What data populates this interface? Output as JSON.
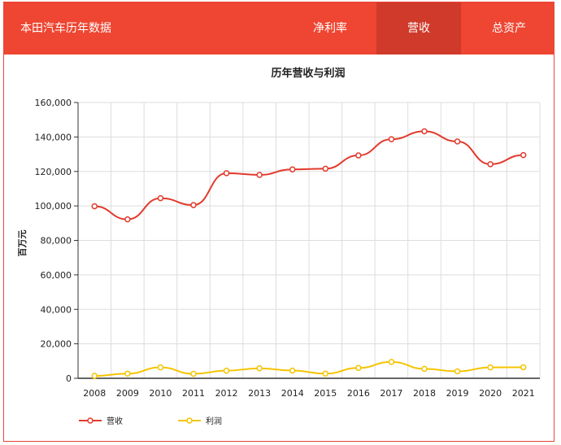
{
  "header": {
    "title": "本田汽车历年数据",
    "tabs": [
      {
        "label": "净利率",
        "active": false
      },
      {
        "label": "营收",
        "active": true
      },
      {
        "label": "总资产",
        "active": false
      }
    ]
  },
  "colors": {
    "accent": "#ee4632",
    "active_tab": "#cf3a2b",
    "series_revenue": "#e23a2c",
    "series_profit": "#f5c400"
  },
  "chart_data": {
    "type": "line",
    "title": "历年营收与利润",
    "xlabel": "",
    "ylabel": "百万元",
    "ylim": [
      0,
      160000
    ],
    "yticks": [
      "0",
      "20,000",
      "40,000",
      "60,000",
      "80,000",
      "100,000",
      "120,000",
      "140,000",
      "160,000"
    ],
    "x": [
      "2008",
      "2009",
      "2010",
      "2011",
      "2012",
      "2013",
      "2014",
      "2015",
      "2016",
      "2017",
      "2018",
      "2019",
      "2020",
      "2021"
    ],
    "grid": true,
    "legend_position": "bottom-left",
    "series": [
      {
        "name": "营收",
        "values": [
          99800,
          92200,
          104500,
          100500,
          119000,
          118000,
          121200,
          121600,
          129300,
          138700,
          143300,
          137400,
          124200,
          129500
        ]
      },
      {
        "name": "利润",
        "values": [
          1400,
          2700,
          6300,
          2600,
          4400,
          5800,
          4500,
          2700,
          6000,
          9500,
          5500,
          4000,
          6300,
          6400
        ]
      }
    ]
  }
}
